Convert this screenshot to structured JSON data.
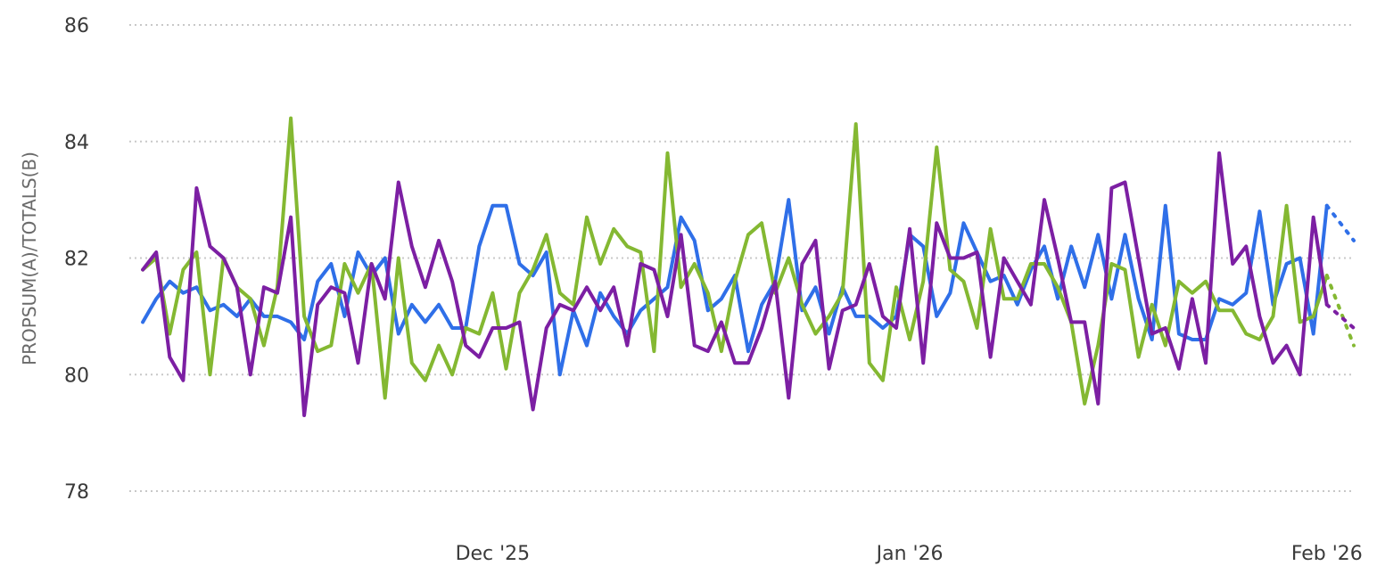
{
  "chart_data": {
    "type": "line",
    "title": "",
    "xlabel": "",
    "ylabel": "PROPSUM(A)/TOTALS(B)",
    "ylim": [
      78,
      86
    ],
    "yticks": [
      78,
      80,
      82,
      84,
      86
    ],
    "xlim": [
      "2025-11-04",
      "2026-02-03"
    ],
    "xticks": [
      {
        "date": "2025-12-01",
        "label": "Dec '25"
      },
      {
        "date": "2026-01-01",
        "label": "Jan '26"
      },
      {
        "date": "2026-02-01",
        "label": "Feb '26"
      }
    ],
    "grid": true,
    "legend": "none",
    "x": [
      "2025-11-05",
      "2025-11-06",
      "2025-11-07",
      "2025-11-08",
      "2025-11-09",
      "2025-11-10",
      "2025-11-11",
      "2025-11-12",
      "2025-11-13",
      "2025-11-14",
      "2025-11-15",
      "2025-11-16",
      "2025-11-17",
      "2025-11-18",
      "2025-11-19",
      "2025-11-20",
      "2025-11-21",
      "2025-11-22",
      "2025-11-23",
      "2025-11-24",
      "2025-11-25",
      "2025-11-26",
      "2025-11-27",
      "2025-11-28",
      "2025-11-29",
      "2025-11-30",
      "2025-12-01",
      "2025-12-02",
      "2025-12-03",
      "2025-12-04",
      "2025-12-05",
      "2025-12-06",
      "2025-12-07",
      "2025-12-08",
      "2025-12-09",
      "2025-12-10",
      "2025-12-11",
      "2025-12-12",
      "2025-12-13",
      "2025-12-14",
      "2025-12-15",
      "2025-12-16",
      "2025-12-17",
      "2025-12-18",
      "2025-12-19",
      "2025-12-20",
      "2025-12-21",
      "2025-12-22",
      "2025-12-23",
      "2025-12-24",
      "2025-12-25",
      "2025-12-26",
      "2025-12-27",
      "2025-12-28",
      "2025-12-29",
      "2025-12-30",
      "2025-12-31",
      "2026-01-01",
      "2026-01-02",
      "2026-01-03",
      "2026-01-04",
      "2026-01-05",
      "2026-01-06",
      "2026-01-07",
      "2026-01-08",
      "2026-01-09",
      "2026-01-10",
      "2026-01-11",
      "2026-01-12",
      "2026-01-13",
      "2026-01-14",
      "2026-01-15",
      "2026-01-16",
      "2026-01-17",
      "2026-01-18",
      "2026-01-19",
      "2026-01-20",
      "2026-01-21",
      "2026-01-22",
      "2026-01-23",
      "2026-01-24",
      "2026-01-25",
      "2026-01-26",
      "2026-01-27",
      "2026-01-28",
      "2026-01-29",
      "2026-01-30",
      "2026-01-31",
      "2026-02-01"
    ],
    "series": [
      {
        "color": "#2f6fe8",
        "values": [
          80.9,
          81.3,
          81.6,
          81.4,
          81.5,
          81.1,
          81.2,
          81.0,
          81.3,
          81.0,
          81.0,
          80.9,
          80.6,
          81.6,
          81.9,
          81.0,
          82.1,
          81.7,
          82.0,
          80.7,
          81.2,
          80.9,
          81.2,
          80.8,
          80.8,
          82.2,
          82.9,
          82.9,
          81.9,
          81.7,
          82.1,
          80.0,
          81.1,
          80.5,
          81.4,
          81.0,
          80.7,
          81.1,
          81.3,
          81.5,
          82.7,
          82.3,
          81.1,
          81.3,
          81.7,
          80.4,
          81.2,
          81.6,
          83.0,
          81.1,
          81.5,
          80.7,
          81.5,
          81.0,
          81.0,
          80.8,
          81.0,
          82.4,
          82.2,
          81.0,
          81.4,
          82.6,
          82.1,
          81.6,
          81.7,
          81.2,
          81.8,
          82.2,
          81.3,
          82.2,
          81.5,
          82.4,
          81.3,
          82.4,
          81.3,
          80.6,
          82.9,
          80.7,
          80.6,
          80.6,
          81.3,
          81.2,
          81.4,
          82.8,
          81.2,
          81.9,
          82.0,
          80.7,
          82.9
        ],
        "tail": 82.3
      },
      {
        "color": "#84b832",
        "values": [
          81.8,
          82.0,
          80.7,
          81.8,
          82.1,
          80.0,
          82.0,
          81.5,
          81.3,
          80.5,
          81.5,
          84.4,
          81.0,
          80.4,
          80.5,
          81.9,
          81.4,
          81.9,
          79.6,
          82.0,
          80.2,
          79.9,
          80.5,
          80.0,
          80.8,
          80.7,
          81.4,
          80.1,
          81.4,
          81.8,
          82.4,
          81.4,
          81.2,
          82.7,
          81.9,
          82.5,
          82.2,
          82.1,
          80.4,
          83.8,
          81.5,
          81.9,
          81.4,
          80.4,
          81.6,
          82.4,
          82.6,
          81.4,
          82.0,
          81.2,
          80.7,
          81.0,
          81.4,
          84.3,
          80.2,
          79.9,
          81.5,
          80.6,
          81.6,
          83.9,
          81.8,
          81.6,
          80.8,
          82.5,
          81.3,
          81.3,
          81.9,
          81.9,
          81.5,
          80.9,
          79.5,
          80.5,
          81.9,
          81.8,
          80.3,
          81.2,
          80.5,
          81.6,
          81.4,
          81.6,
          81.1,
          81.1,
          80.7,
          80.6,
          81.0,
          82.9,
          80.9,
          81.0,
          81.7
        ],
        "tail": 80.5
      },
      {
        "color": "#7c1fa3",
        "values": [
          81.8,
          82.1,
          80.3,
          79.9,
          83.2,
          82.2,
          82.0,
          81.5,
          80.0,
          81.5,
          81.4,
          82.7,
          79.3,
          81.2,
          81.5,
          81.4,
          80.2,
          81.9,
          81.3,
          83.3,
          82.2,
          81.5,
          82.3,
          81.6,
          80.5,
          80.3,
          80.8,
          80.8,
          80.9,
          79.4,
          80.8,
          81.2,
          81.1,
          81.5,
          81.1,
          81.5,
          80.5,
          81.9,
          81.8,
          81.0,
          82.4,
          80.5,
          80.4,
          80.9,
          80.2,
          80.2,
          80.8,
          81.6,
          79.6,
          81.9,
          82.3,
          80.1,
          81.1,
          81.2,
          81.9,
          81.0,
          80.8,
          82.5,
          80.2,
          82.6,
          82.0,
          82.0,
          82.1,
          80.3,
          82.0,
          81.6,
          81.2,
          83.0,
          82.0,
          80.9,
          80.9,
          79.5,
          83.2,
          83.3,
          82.0,
          80.7,
          80.8,
          80.1,
          81.3,
          80.2,
          83.8,
          81.9,
          82.2,
          81.0,
          80.2,
          80.5,
          80.0,
          82.7,
          81.2
        ],
        "tail": 80.8
      }
    ]
  }
}
